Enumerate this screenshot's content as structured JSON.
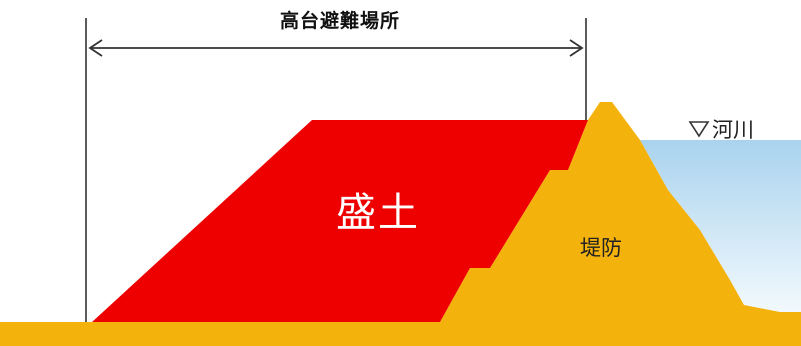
{
  "diagram": {
    "span_label": "高台避難場所",
    "embankment_label": "盛土",
    "levee_label": "堤防",
    "river_label": "河川",
    "water_level_icon": "triangle-down-icon",
    "colors": {
      "embankment": "#ef0000",
      "levee": "#f4b20c",
      "water": "#cfe8f6",
      "line": "#333333"
    }
  }
}
